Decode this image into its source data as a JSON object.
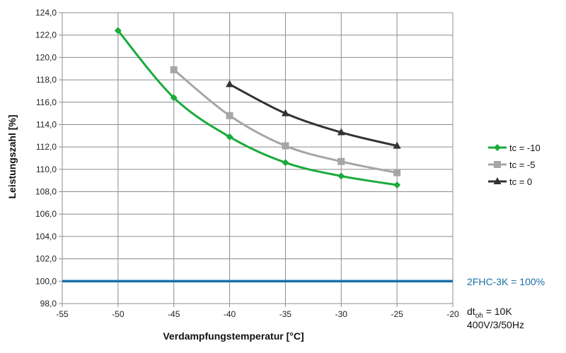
{
  "chart_data": {
    "type": "line",
    "xlabel": "Verdampfungstemperatur [°C]",
    "ylabel": "Leistungszahl [%]",
    "xlim": [
      -55,
      -20
    ],
    "ylim": [
      98,
      124
    ],
    "x_ticks": [
      "-55",
      "-50",
      "-45",
      "-40",
      "-35",
      "-30",
      "-25",
      "-20"
    ],
    "y_ticks": [
      "98,0",
      "100,0",
      "102,0",
      "104,0",
      "106,0",
      "108,0",
      "110,0",
      "112,0",
      "114,0",
      "116,0",
      "118,0",
      "120,0",
      "122,0",
      "124,0"
    ],
    "grid": true,
    "legend_position": "right",
    "series": [
      {
        "name": "tc = -10",
        "color": "#1aab3c",
        "marker": "diamond",
        "x": [
          -50,
          -45,
          -40,
          -35,
          -30,
          -25
        ],
        "y": [
          122.4,
          116.4,
          112.9,
          110.6,
          109.4,
          108.6
        ]
      },
      {
        "name": "tc = -5",
        "color": "#a6a6a6",
        "marker": "square",
        "x": [
          -45,
          -40,
          -35,
          -30,
          -25
        ],
        "y": [
          118.9,
          114.8,
          112.1,
          110.7,
          109.7
        ]
      },
      {
        "name": "tc = 0",
        "color": "#333333",
        "marker": "triangle",
        "x": [
          -40,
          -35,
          -30,
          -25
        ],
        "y": [
          117.6,
          115.0,
          113.3,
          112.1
        ]
      }
    ],
    "reference_line": {
      "y": 100.0,
      "label": "2FHC-3K = 100%",
      "color": "#1a6fa8"
    },
    "note": {
      "line1_main": "dt",
      "line1_sub": "oh",
      "line1_rest": " = 10K",
      "line2": "400V/3/50Hz"
    }
  }
}
